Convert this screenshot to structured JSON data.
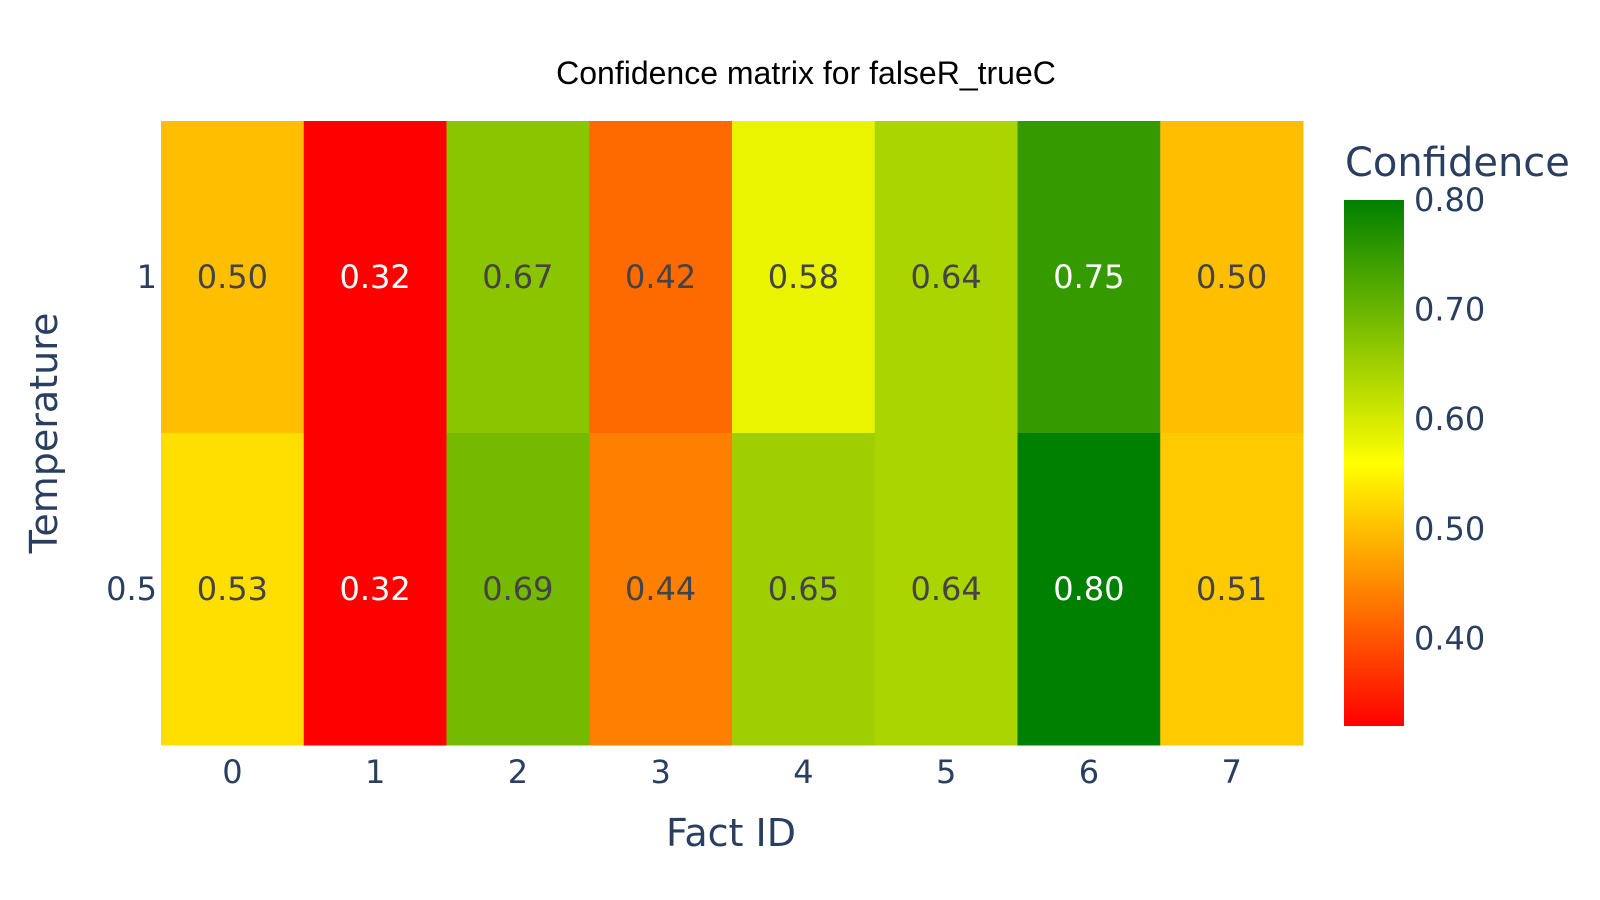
{
  "chart_data": {
    "type": "heatmap",
    "title": "Confidence matrix for falseR_trueC",
    "xlabel": "Fact ID",
    "ylabel": "Temperature",
    "x": [
      "0",
      "1",
      "2",
      "3",
      "4",
      "5",
      "6",
      "7"
    ],
    "y": [
      "1",
      "0.5"
    ],
    "z": [
      [
        0.5,
        0.32,
        0.67,
        0.42,
        0.58,
        0.64,
        0.75,
        0.5
      ],
      [
        0.53,
        0.32,
        0.69,
        0.44,
        0.65,
        0.64,
        0.8,
        0.51
      ]
    ],
    "text": [
      [
        "0.50",
        "0.32",
        "0.67",
        "0.42",
        "0.58",
        "0.64",
        "0.75",
        "0.50"
      ],
      [
        "0.53",
        "0.32",
        "0.69",
        "0.44",
        "0.65",
        "0.64",
        "0.80",
        "0.51"
      ]
    ],
    "colorscale": [
      [
        0.0,
        "#ff0000"
      ],
      [
        0.5,
        "#ffff00"
      ],
      [
        1.0,
        "#008000"
      ]
    ],
    "zmin": 0.32,
    "zmax": 0.8,
    "colorbar": {
      "title": "Confidence",
      "tickvals": [
        0.4,
        0.5,
        0.6,
        0.7,
        0.8
      ],
      "ticktext": [
        "0.40",
        "0.50",
        "0.60",
        "0.70",
        "0.80"
      ]
    },
    "grid": false,
    "legend": "none"
  }
}
